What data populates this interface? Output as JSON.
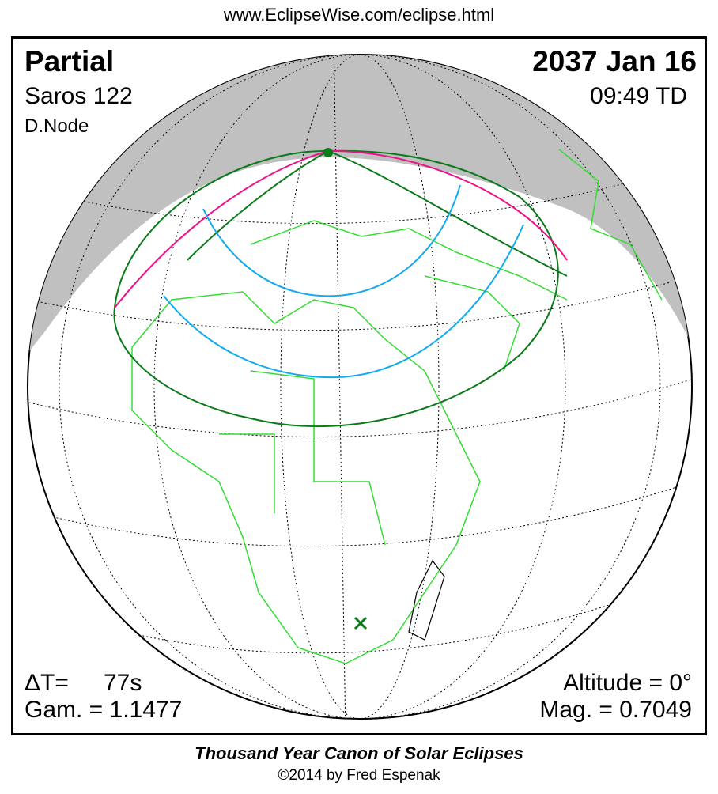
{
  "header": {
    "url": "www.EclipseWise.com/eclipse.html"
  },
  "eclipse": {
    "type": "Partial",
    "date": "2037 Jan 16",
    "saros": "Saros 122",
    "time": "09:49 TD",
    "node": "D.Node",
    "delta_t_label": "ΔT=",
    "delta_t_value": "77s",
    "gamma": "Gam. = 1.1477",
    "altitude": "Altitude =  0°",
    "magnitude": "Mag. = 0.7049"
  },
  "footer": {
    "caption": "Thousand Year Canon of Solar Eclipses",
    "copyright": "©2014 by Fred Espenak"
  },
  "colors": {
    "night": "#c0c0c0",
    "borders": "#33dd33",
    "coast": "#000000",
    "eclipse_limit": "#0a7a1a",
    "max_line": "#ee1188",
    "time_curves": "#11aaee"
  }
}
